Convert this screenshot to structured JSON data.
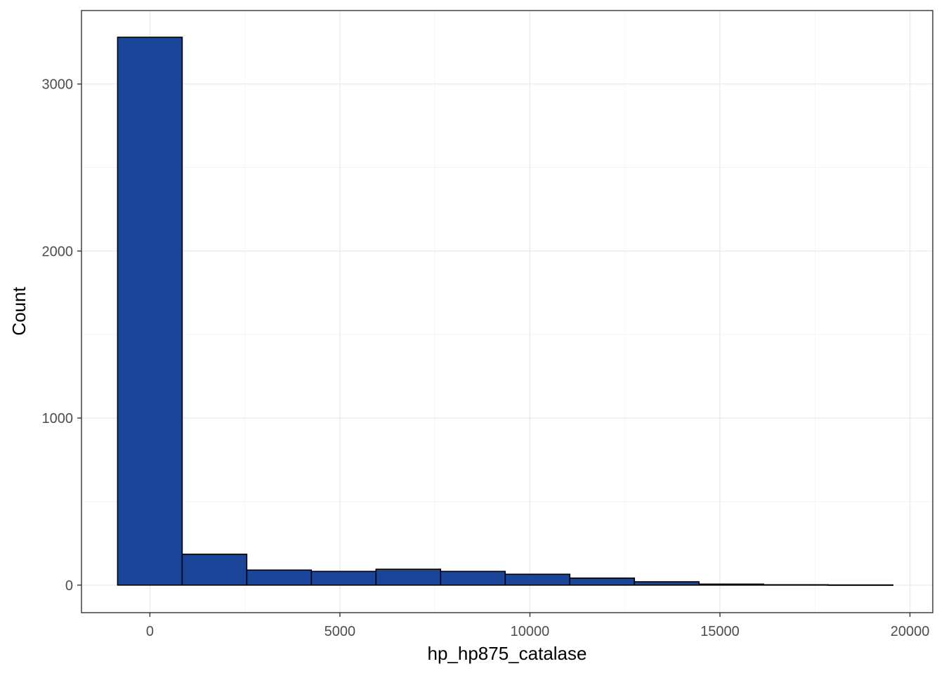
{
  "chart_data": {
    "type": "bar",
    "subtype": "histogram",
    "title": "",
    "xlabel": "hp_hp875_catalase",
    "ylabel": "Count",
    "xlim": [
      -1800,
      20600
    ],
    "ylim": [
      -165,
      3440
    ],
    "x_ticks": [
      0,
      5000,
      10000,
      15000,
      20000
    ],
    "x_tick_labels": [
      "0",
      "5000",
      "10000",
      "15000",
      "20000"
    ],
    "y_ticks": [
      0,
      1000,
      2000,
      3000
    ],
    "y_tick_labels": [
      "0",
      "1000",
      "2000",
      "3000"
    ],
    "grid": true,
    "legend": "none",
    "bins": [
      {
        "x0": -850,
        "x1": 850,
        "count": 3280
      },
      {
        "x0": 850,
        "x1": 2550,
        "count": 185
      },
      {
        "x0": 2550,
        "x1": 4250,
        "count": 90
      },
      {
        "x0": 4250,
        "x1": 5950,
        "count": 82
      },
      {
        "x0": 5950,
        "x1": 7650,
        "count": 95
      },
      {
        "x0": 7650,
        "x1": 9350,
        "count": 82
      },
      {
        "x0": 9350,
        "x1": 11050,
        "count": 65
      },
      {
        "x0": 11050,
        "x1": 12750,
        "count": 42
      },
      {
        "x0": 12750,
        "x1": 14450,
        "count": 20
      },
      {
        "x0": 14450,
        "x1": 16150,
        "count": 6
      },
      {
        "x0": 16150,
        "x1": 17850,
        "count": 2
      },
      {
        "x0": 17850,
        "x1": 19550,
        "count": 1
      }
    ],
    "colors": {
      "bar_fill": "#1a4599",
      "bar_stroke": "#000000",
      "panel_border": "#333333",
      "grid": "#ebebeb"
    }
  }
}
